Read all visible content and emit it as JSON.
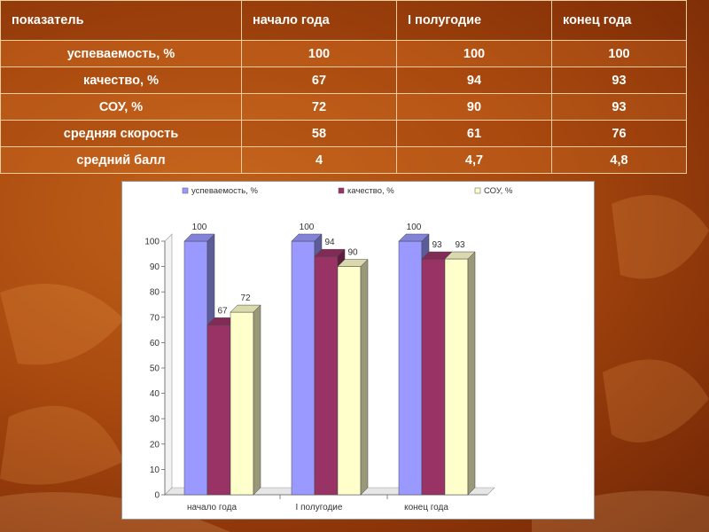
{
  "table": {
    "headers": [
      "показатель",
      "начало года",
      "I полугодие",
      "конец года"
    ],
    "rows": [
      {
        "label": "успеваемость, %",
        "values": [
          "100",
          "100",
          "100"
        ]
      },
      {
        "label": "качество, %",
        "values": [
          "67",
          "94",
          "93"
        ]
      },
      {
        "label": "СОУ, %",
        "values": [
          "72",
          "90",
          "93"
        ]
      },
      {
        "label": "средняя скорость",
        "values": [
          "58",
          "61",
          "76"
        ]
      },
      {
        "label": "средний балл",
        "values": [
          "4",
          "4,7",
          "4,8"
        ]
      }
    ]
  },
  "chart_data": {
    "type": "bar",
    "categories": [
      "начало года",
      "I полугодие",
      "конец года"
    ],
    "series": [
      {
        "name": "успеваемость, %",
        "values": [
          100,
          100,
          100
        ],
        "color": "#9999ff"
      },
      {
        "name": "качество, %",
        "values": [
          67,
          94,
          93
        ],
        "color": "#993366"
      },
      {
        "name": "СОУ, %",
        "values": [
          72,
          90,
          93
        ],
        "color": "#ffffcc"
      }
    ],
    "ylim": [
      0,
      100
    ],
    "yticks": [
      0,
      10,
      20,
      30,
      40,
      50,
      60,
      70,
      80,
      90,
      100
    ],
    "legend": "top",
    "grid": false,
    "style": "3d-columns"
  },
  "colors": {
    "background": "#a8490f",
    "table_border": "#f4cda0",
    "text": "#ffffff"
  }
}
